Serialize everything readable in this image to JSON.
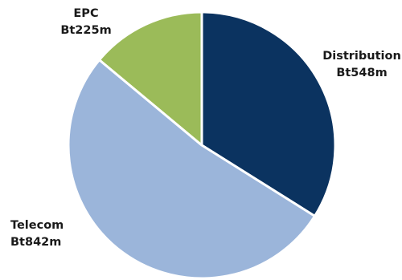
{
  "chart_data": {
    "type": "pie",
    "title": "",
    "slices": [
      {
        "label": "Distribution",
        "value_label": "Bt548m",
        "value": 548,
        "color": "#0b3360"
      },
      {
        "label": "Telecom",
        "value_label": "Bt842m",
        "value": 842,
        "color": "#9bb5da"
      },
      {
        "label": "EPC",
        "value_label": "Bt225m",
        "value": 225,
        "color": "#9bbb59"
      }
    ],
    "start": "12 o'clock",
    "direction": "clockwise"
  }
}
